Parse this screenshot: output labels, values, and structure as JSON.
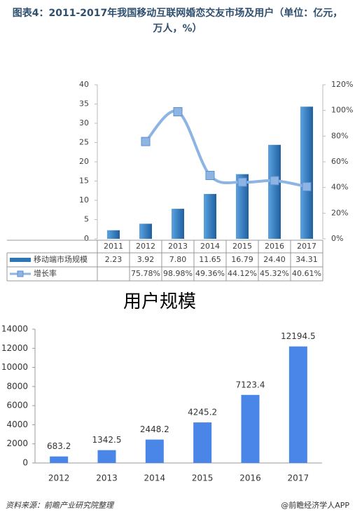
{
  "title": "图表4：2011-2017年我国移动互联网婚恋交友市场及用户（单位：亿元，万人，%）",
  "chart_data": [
    {
      "type": "bar",
      "data_table": true,
      "categories": [
        "2011",
        "2012",
        "2013",
        "2014",
        "2015",
        "2016",
        "2017"
      ],
      "series": [
        {
          "name": "移动端市场规模",
          "type": "bar",
          "color": "#2e75b6",
          "values": [
            2.23,
            3.92,
            7.8,
            11.65,
            16.79,
            24.4,
            34.31
          ],
          "value_labels": [
            "2.23",
            "3.92",
            "7.80",
            "11.65",
            "16.79",
            "24.40",
            "34.31"
          ]
        },
        {
          "name": "增长率",
          "type": "line",
          "axis": "y2",
          "color": "#8db4e2",
          "values": [
            null,
            75.78,
            98.98,
            49.36,
            44.12,
            45.32,
            40.61
          ],
          "value_labels": [
            null,
            "75.78%",
            "98.98%",
            "49.36%",
            "44.12%",
            "45.32%",
            "40.61%"
          ]
        }
      ],
      "ylim": [
        0,
        40
      ],
      "yticks": [
        0,
        5,
        10,
        15,
        20,
        25,
        30,
        35,
        40
      ],
      "y2lim": [
        0,
        120
      ],
      "y2ticks": [
        {
          "value": 0,
          "label": "0%"
        },
        {
          "value": 20,
          "label": "20%"
        },
        {
          "value": 40,
          "label": "40%"
        },
        {
          "value": 60,
          "label": "60%"
        },
        {
          "value": 80,
          "label": "80%"
        },
        {
          "value": 100,
          "label": "100%"
        },
        {
          "value": 120,
          "label": "120%"
        }
      ]
    },
    {
      "type": "bar",
      "title": "用户规模",
      "color": "#4a86e8",
      "categories": [
        "2012",
        "2013",
        "2014",
        "2015",
        "2016",
        "2017"
      ],
      "values": [
        683.2,
        1342.5,
        2448.2,
        4245.2,
        7123.4,
        12194.5
      ],
      "ylim": [
        0,
        14000
      ],
      "yticks": [
        0,
        2000,
        4000,
        6000,
        8000,
        10000,
        12000,
        14000
      ]
    }
  ],
  "footer": {
    "source": "资料来源：前瞻产业研究院整理",
    "brand": "@前瞻经济学人APP"
  }
}
